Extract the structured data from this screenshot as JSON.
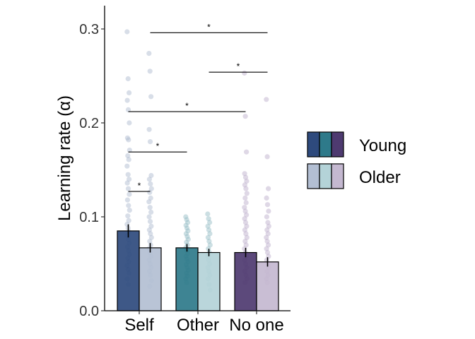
{
  "chart_data": {
    "type": "bar",
    "title": "",
    "xlabel": "",
    "ylabel": "Learning rate (α)",
    "ylim": [
      0,
      0.325
    ],
    "yticks": [
      "0.0",
      "0.1",
      "0.2",
      "0.3"
    ],
    "ytick_values": [
      0,
      0.1,
      0.2,
      0.3
    ],
    "categories": [
      "Self",
      "Other",
      "No one"
    ],
    "series": [
      {
        "name": "Young",
        "values": [
          0.085,
          0.067,
          0.062
        ],
        "errors": [
          0.007,
          0.004,
          0.005
        ],
        "colors": [
          "#2e4a7d",
          "#2e7a8a",
          "#4e3a70"
        ]
      },
      {
        "name": "Older",
        "values": [
          0.067,
          0.062,
          0.052
        ],
        "errors": [
          0.005,
          0.004,
          0.005
        ],
        "colors": [
          "#b3bfd3",
          "#b4d3d8",
          "#c4b8d0"
        ]
      }
    ],
    "points": [
      [
        0.297,
        0.247,
        0.232,
        0.224,
        0.214,
        0.2,
        0.184,
        0.182,
        0.171,
        0.165,
        0.161,
        0.154,
        0.145,
        0.14,
        0.136,
        0.13,
        0.124,
        0.118,
        0.112,
        0.107,
        0.101,
        0.096,
        0.092,
        0.088,
        0.084,
        0.08,
        0.076,
        0.072,
        0.068,
        0.064,
        0.06,
        0.056,
        0.052,
        0.048,
        0.044,
        0.04,
        0.034,
        0.028
      ],
      [
        0.274,
        0.255,
        0.228,
        0.193,
        0.18,
        0.144,
        0.14,
        0.135,
        0.13,
        0.126,
        0.12,
        0.116,
        0.11,
        0.105,
        0.1,
        0.095,
        0.09,
        0.086,
        0.082,
        0.078,
        0.074,
        0.07,
        0.066,
        0.062,
        0.058,
        0.054,
        0.05,
        0.046,
        0.042,
        0.038,
        0.032,
        0.026
      ],
      [
        0.1,
        0.097,
        0.094,
        0.091,
        0.088,
        0.085,
        0.082,
        0.079,
        0.076,
        0.073,
        0.07,
        0.067,
        0.064,
        0.061,
        0.058,
        0.055,
        0.052,
        0.049,
        0.046,
        0.043,
        0.04,
        0.037,
        0.034,
        0.03
      ],
      [
        0.103,
        0.098,
        0.094,
        0.09,
        0.086,
        0.082,
        0.078,
        0.074,
        0.07,
        0.066,
        0.062,
        0.058,
        0.054,
        0.05,
        0.046,
        0.042,
        0.038,
        0.034,
        0.028,
        0.022
      ],
      [
        0.253,
        0.207,
        0.169,
        0.146,
        0.142,
        0.138,
        0.134,
        0.13,
        0.125,
        0.12,
        0.115,
        0.11,
        0.106,
        0.102,
        0.098,
        0.094,
        0.09,
        0.086,
        0.082,
        0.078,
        0.074,
        0.07,
        0.066,
        0.062,
        0.058,
        0.054,
        0.05,
        0.046,
        0.042,
        0.038,
        0.034,
        0.03
      ],
      [
        0.225,
        0.164,
        0.13,
        0.12,
        0.113,
        0.106,
        0.1,
        0.094,
        0.09,
        0.086,
        0.082,
        0.078,
        0.074,
        0.07,
        0.066,
        0.062,
        0.058,
        0.054,
        0.05,
        0.046,
        0.042,
        0.038,
        0.034,
        0.03
      ]
    ],
    "significance": [
      {
        "from": 0,
        "to": 1,
        "y": 0.127,
        "label": "*"
      },
      {
        "from": 0,
        "to": 2,
        "y": 0.169,
        "label": "*"
      },
      {
        "from": 0,
        "to": 4,
        "y": 0.212,
        "label": "*"
      },
      {
        "from": 3,
        "to": 5,
        "y": 0.254,
        "label": "*"
      },
      {
        "from": 1,
        "to": 5,
        "y": 0.296,
        "label": "*"
      }
    ],
    "legend": {
      "placement": "right",
      "entries": [
        {
          "label": "Young",
          "colors": [
            "#2e4a7d",
            "#2e7a8a",
            "#4e3a70"
          ]
        },
        {
          "label": "Older",
          "colors": [
            "#b3bfd3",
            "#b4d3d8",
            "#c4b8d0"
          ]
        }
      ]
    },
    "grid": false
  }
}
